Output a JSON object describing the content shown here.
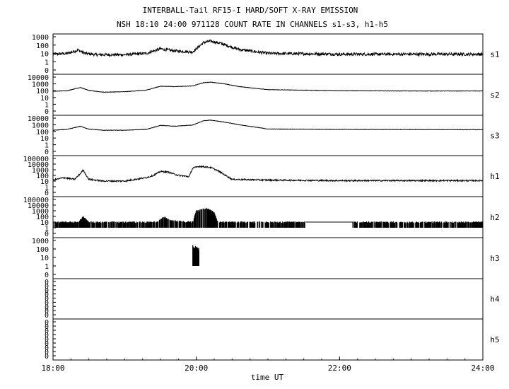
{
  "chart_data": {
    "type": "line",
    "title": "INTERBALL-Tail RF15-I HARD/SOFT X-RAY EMISSION",
    "subtitle": "NSH 18:10 24:00 971128  COUNT RATE IN CHANNELS s1-s3, h1-h5",
    "xlabel": "time UT",
    "x_ticks": [
      "18:00",
      "20:00",
      "22:00",
      "24:00"
    ],
    "xlim": [
      "18:00",
      "24:00"
    ],
    "y_scale": "log",
    "grid": false,
    "panels": [
      {
        "name": "s1",
        "y_ticks": [
          "1000",
          "100",
          "10",
          "1",
          "0"
        ],
        "series": {
          "x": [
            18.0,
            18.2,
            18.35,
            18.45,
            18.6,
            19.0,
            19.3,
            19.5,
            19.7,
            19.95,
            20.1,
            20.2,
            20.35,
            20.6,
            21.0,
            22.0,
            23.0,
            24.0
          ],
          "y": [
            8,
            10,
            25,
            10,
            7,
            7,
            10,
            35,
            20,
            15,
            200,
            300,
            150,
            30,
            10,
            8,
            8,
            8
          ]
        }
      },
      {
        "name": "s2",
        "y_ticks": [
          "10000",
          "1000",
          "100",
          "10",
          "1",
          "0"
        ],
        "series": {
          "x": [
            18.0,
            18.2,
            18.38,
            18.5,
            18.7,
            19.0,
            19.3,
            19.5,
            19.7,
            19.95,
            20.1,
            20.2,
            20.35,
            20.6,
            21.0,
            22.0,
            23.0,
            24.0
          ],
          "y": [
            80,
            100,
            300,
            110,
            60,
            70,
            120,
            450,
            400,
            500,
            1500,
            1800,
            1200,
            400,
            140,
            100,
            90,
            90
          ]
        }
      },
      {
        "name": "s3",
        "y_ticks": [
          "10000",
          "1000",
          "100",
          "10",
          "1",
          "0"
        ],
        "series": {
          "x": [
            18.0,
            18.2,
            18.38,
            18.5,
            18.7,
            19.0,
            19.3,
            19.5,
            19.7,
            19.95,
            20.1,
            20.2,
            20.35,
            20.6,
            21.0,
            22.0,
            23.0,
            24.0
          ],
          "y": [
            150,
            200,
            600,
            220,
            150,
            150,
            200,
            800,
            600,
            900,
            4000,
            5000,
            3000,
            1000,
            230,
            200,
            190,
            180
          ]
        }
      },
      {
        "name": "h1",
        "y_ticks": [
          "100000",
          "10000",
          "1000",
          "100",
          "10",
          "1",
          "0"
        ],
        "series": {
          "x": [
            18.0,
            18.15,
            18.3,
            18.38,
            18.42,
            18.5,
            18.7,
            19.0,
            19.3,
            19.4,
            19.5,
            19.6,
            19.75,
            19.9,
            19.95,
            20.05,
            20.2,
            20.3,
            20.5,
            21.0,
            22.0,
            23.0,
            24.0
          ],
          "y": [
            15,
            40,
            20,
            200,
            900,
            20,
            10,
            10,
            40,
            100,
            500,
            400,
            100,
            60,
            2000,
            4000,
            2500,
            700,
            20,
            15,
            12,
            12,
            12
          ]
        }
      },
      {
        "name": "h2",
        "y_ticks": [
          "100000",
          "10000",
          "1000",
          "100",
          "10",
          "1",
          "0"
        ],
        "series": {
          "x": [
            18.0,
            18.35,
            18.42,
            18.5,
            19.0,
            19.45,
            19.55,
            19.65,
            19.95,
            20.0,
            20.15,
            20.25,
            20.3,
            21.0,
            21.5,
            22.2,
            24.0
          ],
          "y": [
            10,
            10,
            100,
            10,
            10,
            10,
            80,
            20,
            10,
            1000,
            3000,
            500,
            10,
            10,
            10,
            10,
            10
          ]
        },
        "data_gap": [
          21.52,
          22.18
        ]
      },
      {
        "name": "h3",
        "y_ticks": [
          "1000",
          "100",
          "10",
          "1",
          "0"
        ],
        "series": {
          "x": [
            19.95,
            19.97,
            19.99,
            20.0,
            20.02,
            20.04
          ],
          "y": [
            300,
            100,
            200,
            150,
            100,
            100
          ]
        }
      },
      {
        "name": "h4",
        "y_ticks": [
          "0",
          "0",
          "0",
          "0",
          "0",
          "0",
          "0",
          "0",
          "0"
        ],
        "series": {
          "x": [
            18.0,
            24.0
          ],
          "y": [
            0,
            0
          ]
        }
      },
      {
        "name": "h5",
        "y_ticks": [
          "0",
          "0",
          "0",
          "0",
          "0",
          "0",
          "0",
          "0",
          "0"
        ],
        "series": {
          "x": [
            18.0,
            24.0
          ],
          "y": [
            0,
            0
          ]
        }
      }
    ]
  }
}
